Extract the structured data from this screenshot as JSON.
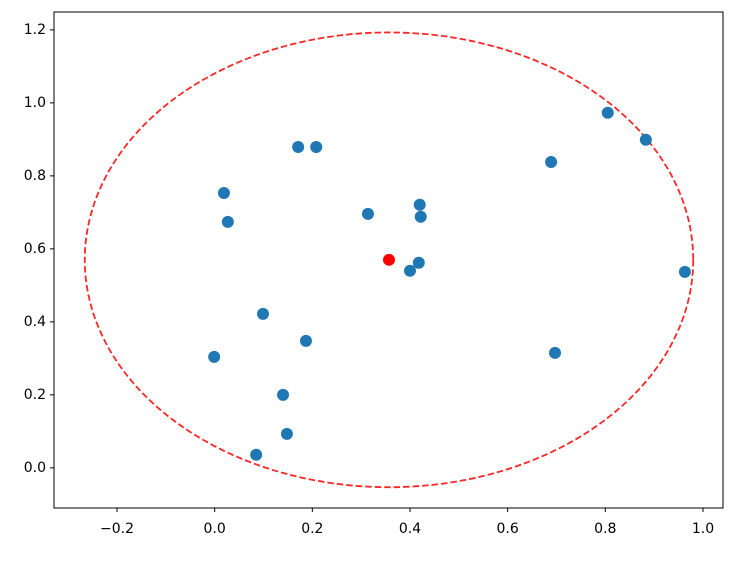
{
  "chart_data": {
    "type": "scatter",
    "x": [
      0.019,
      0.027,
      0.171,
      0.208,
      0.314,
      0.42,
      0.422,
      0.4,
      0.418,
      0.689,
      0.805,
      0.883,
      0.963,
      0.697,
      0.099,
      -0.001,
      0.187,
      0.14,
      0.148,
      0.085
    ],
    "values": [
      0.753,
      0.674,
      0.879,
      0.879,
      0.696,
      0.721,
      0.688,
      0.54,
      0.562,
      0.838,
      0.973,
      0.899,
      0.537,
      0.315,
      0.422,
      0.304,
      0.348,
      0.2,
      0.093,
      0.036
    ],
    "color": "#1f77b4",
    "center": {
      "x": 0.357,
      "y": 0.57,
      "color": "red"
    },
    "circle": {
      "radius": 0.623,
      "color": "red",
      "dashed": true
    },
    "xlim": [
      -0.329,
      1.041
    ],
    "ylim": [
      -0.11,
      1.249
    ],
    "xticks": [
      {
        "value": -0.2,
        "label": "−0.2"
      },
      {
        "value": 0,
        "label": "0.0"
      },
      0.2,
      0.4,
      0.6,
      0.8,
      {
        "value": 1,
        "label": "1.0"
      }
    ],
    "yticks": [
      {
        "value": 0,
        "label": "0.0"
      },
      0.2,
      0.4,
      0.6,
      0.8,
      {
        "value": 1,
        "label": "1.0"
      },
      1.2
    ],
    "grid": false
  }
}
